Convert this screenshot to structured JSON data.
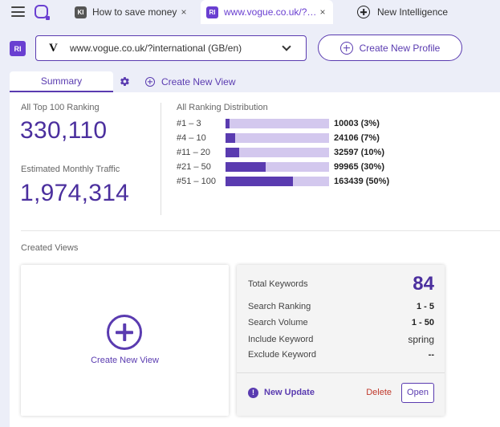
{
  "tabs": [
    {
      "badge": "KI",
      "title": "How to save money",
      "close": "×"
    },
    {
      "badge": "RI",
      "title": "www.vogue.co.uk/?int...",
      "close": "×"
    },
    {
      "title": "New Intelligence"
    }
  ],
  "profile": {
    "badge": "RI",
    "logo": "V",
    "selected": "www.vogue.co.uk/?international (GB/en)",
    "create_label": "Create New Profile"
  },
  "subtabs": {
    "summary": "Summary",
    "create_view": "Create New View"
  },
  "stats": {
    "top100_label": "All Top 100 Ranking",
    "top100_value": "330,110",
    "traffic_label": "Estimated Monthly Traffic",
    "traffic_value": "1,974,314"
  },
  "distribution": {
    "title": "All Ranking Distribution",
    "rows": [
      {
        "label": "#1 – 3",
        "value": "10003 (3%)",
        "percent": 3
      },
      {
        "label": "#4 – 10",
        "value": "24106 (7%)",
        "percent": 7
      },
      {
        "label": "#11 – 20",
        "value": "32597 (10%)",
        "percent": 10
      },
      {
        "label": "#21 – 50",
        "value": "99965 (30%)",
        "percent": 30
      },
      {
        "label": "#51 – 100",
        "value": "163439 (50%)",
        "percent": 50
      }
    ]
  },
  "created_views": {
    "label": "Created Views",
    "create_text": "Create New View"
  },
  "view_card": {
    "total_label": "Total Keywords",
    "total_value": "84",
    "rows": [
      {
        "label": "Search Ranking",
        "value": "1 - 5"
      },
      {
        "label": "Search Volume",
        "value": "1 - 50"
      },
      {
        "label": "Include Keyword",
        "value": "spring"
      },
      {
        "label": "Exclude Keyword",
        "value": "--"
      }
    ],
    "alert": "!",
    "update_label": "New Update",
    "delete_label": "Delete",
    "open_label": "Open"
  }
}
